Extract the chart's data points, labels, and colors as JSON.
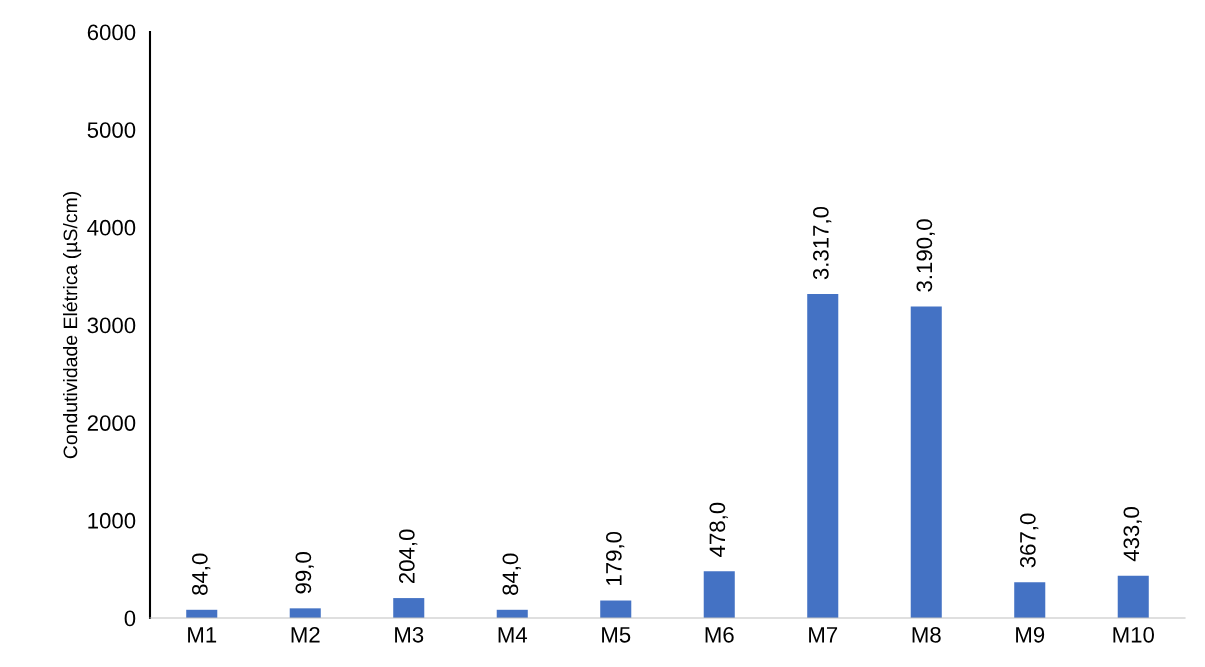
{
  "chart_data": {
    "type": "bar",
    "ylabel": "Condutividade Elétrica (µS/cm)",
    "categories": [
      "M1",
      "M2",
      "M3",
      "M4",
      "M5",
      "M6",
      "M7",
      "M8",
      "M9",
      "M10"
    ],
    "values": [
      84,
      99,
      204,
      84,
      179,
      478,
      3317,
      3190,
      367,
      433
    ],
    "value_labels": [
      "84,0",
      "99,0",
      "204,0",
      "84,0",
      "179,0",
      "478,0",
      "3.317,0",
      "3.190,0",
      "367,0",
      "433,0"
    ],
    "color": "#4472c4",
    "ylim": [
      0,
      6000
    ],
    "yticks": [
      0,
      1000,
      2000,
      3000,
      4000,
      5000,
      6000
    ],
    "grid": false,
    "legend": false
  }
}
